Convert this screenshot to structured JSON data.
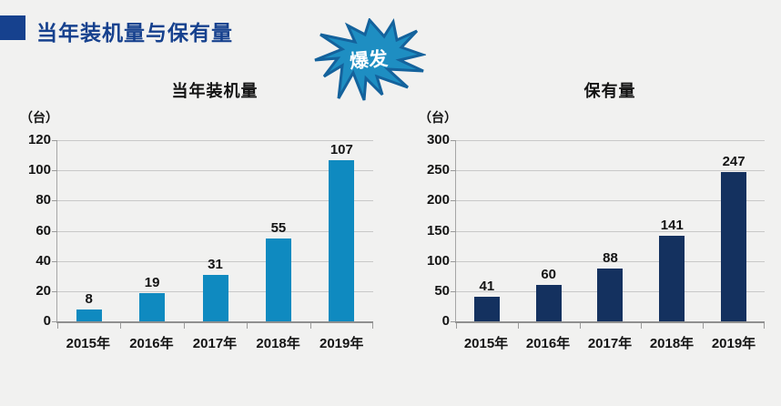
{
  "page": {
    "background_color": "#f1f1f0"
  },
  "header": {
    "title": "当年装机量与保有量",
    "accent_color": "#16418e"
  },
  "burst": {
    "label": "爆发",
    "fill_color": "#1e8ec2",
    "stroke_color": "#14629c",
    "text_color": "#ffffff"
  },
  "chart_data": [
    {
      "type": "bar",
      "title": "当年装机量",
      "unit_label": "（台）",
      "categories": [
        "2015年",
        "2016年",
        "2017年",
        "2018年",
        "2019年"
      ],
      "values": [
        8,
        19,
        31,
        55,
        107
      ],
      "yticks": [
        0,
        20,
        40,
        60,
        80,
        100,
        120
      ],
      "ylim": [
        0,
        120
      ],
      "bar_color": "#0f8ac0",
      "grid": true,
      "legend": "none",
      "xlabel": "",
      "ylabel": "（台）"
    },
    {
      "type": "bar",
      "title": "保有量",
      "unit_label": "（台）",
      "categories": [
        "2015年",
        "2016年",
        "2017年",
        "2018年",
        "2019年"
      ],
      "values": [
        41,
        60,
        88,
        141,
        247
      ],
      "yticks": [
        0,
        50,
        100,
        150,
        200,
        250,
        300
      ],
      "ylim": [
        0,
        300
      ],
      "bar_color": "#14315f",
      "grid": true,
      "legend": "none",
      "xlabel": "",
      "ylabel": "（台）"
    }
  ]
}
